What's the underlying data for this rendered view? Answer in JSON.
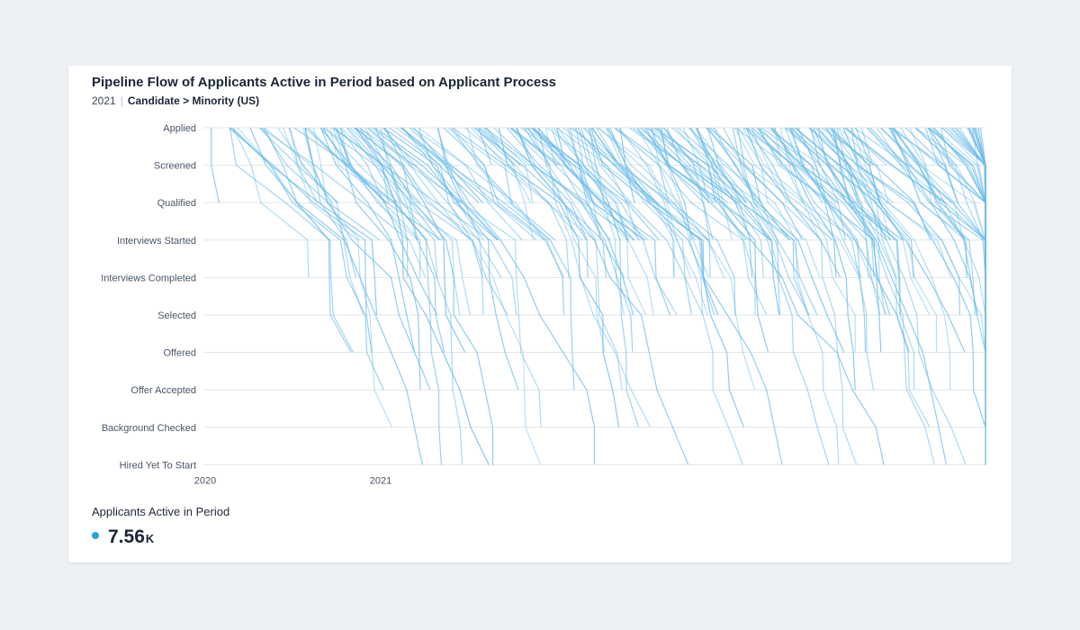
{
  "header": {
    "title": "Pipeline Flow of Applicants Active in Period based on Applicant Process",
    "period": "2021",
    "filter": "Candidate > Minority (US)"
  },
  "metric": {
    "label": "Applicants Active in Period",
    "value": "7.56",
    "unit": "K",
    "color": "#27a3e0"
  },
  "chart_data": {
    "type": "line",
    "stages": [
      "Applied",
      "Screened",
      "Qualified",
      "Interviews Started",
      "Interviews Completed",
      "Selected",
      "Offered",
      "Offer Accepted",
      "Background Checked",
      "Hired Yet To Start"
    ],
    "x_ticks": [
      "2020",
      "2021"
    ],
    "line_color": "#6cbce8",
    "grid": true,
    "series_encoding": "each line = one applicant; x = time, y = pipeline stage",
    "sample_paths": [
      [
        0.01,
        0.01,
        0.02
      ],
      [
        0.06,
        0.08,
        0.12,
        0.18,
        0.2,
        0.22,
        0.24,
        0.26,
        0.27,
        0.28
      ],
      [
        0.13,
        0.14,
        0.16,
        0.19,
        0.24,
        0.25,
        0.27
      ],
      [
        0.15,
        0.17,
        0.21,
        0.24,
        0.25,
        0.26,
        0.27,
        0.29
      ],
      [
        0.22,
        0.24,
        0.27,
        0.31,
        0.32,
        0.32,
        0.35,
        0.36,
        0.37,
        0.37
      ],
      [
        0.3,
        0.31,
        0.34,
        0.38,
        0.41,
        0.43,
        0.46,
        0.49,
        0.5,
        0.5
      ],
      [
        0.4,
        0.42,
        0.46,
        0.5,
        0.52,
        0.56,
        0.57,
        0.58,
        0.6,
        0.62
      ],
      [
        0.52,
        0.54,
        0.57,
        0.62,
        0.64,
        0.67,
        0.7,
        0.72,
        0.73,
        0.74
      ],
      [
        0.63,
        0.65,
        0.68,
        0.7,
        0.74,
        0.76,
        0.81,
        0.83,
        0.86,
        0.87
      ],
      [
        0.78,
        0.8,
        0.83,
        0.86,
        0.88,
        0.9,
        0.92,
        0.93,
        0.94,
        0.95
      ],
      [
        0.88,
        0.9,
        0.93,
        0.96,
        0.98,
        0.99
      ]
    ]
  }
}
